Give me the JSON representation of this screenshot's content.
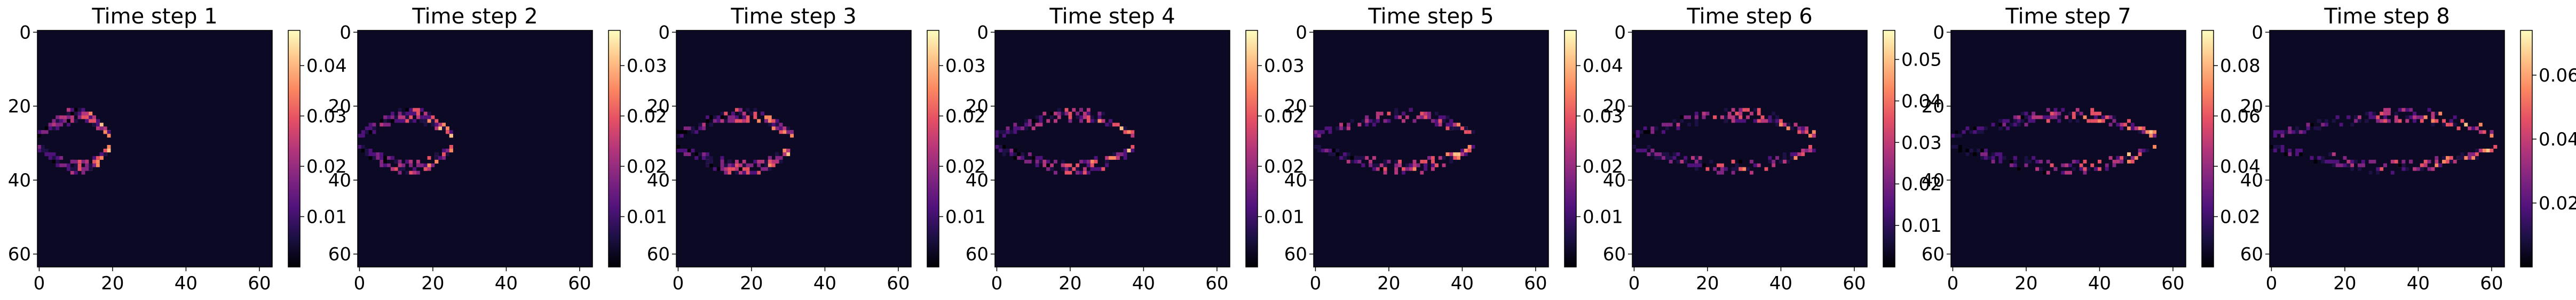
{
  "chart_data": [
    {
      "type": "heatmap",
      "title": "Time step 1",
      "xticks": [
        "0",
        "20",
        "40",
        "60"
      ],
      "yticks": [
        "0",
        "20",
        "40",
        "60"
      ],
      "xlim": [
        0,
        64
      ],
      "ylim": [
        64,
        0
      ],
      "colormap": "magma",
      "colorbar": {
        "ticks": [
          "0.04",
          "0.03",
          "0.02",
          "0.01"
        ],
        "range": [
          0,
          0.044
        ]
      },
      "color_min": "#000004",
      "color_max": "#fcfdbf",
      "background": "#0b0924"
    },
    {
      "type": "heatmap",
      "title": "Time step 2",
      "xticks": [
        "0",
        "20",
        "40",
        "60"
      ],
      "yticks": [
        "0",
        "20",
        "40",
        "60"
      ],
      "xlim": [
        0,
        64
      ],
      "ylim": [
        64,
        0
      ],
      "colormap": "magma",
      "colorbar": {
        "ticks": [
          "0.03",
          "0.02",
          "0.02",
          "0.01"
        ],
        "range": [
          0,
          0.037
        ]
      },
      "color_min": "#000004",
      "color_max": "#fcfdbf",
      "background": "#0b0924"
    },
    {
      "type": "heatmap",
      "title": "Time step 3",
      "xticks": [
        "0",
        "20",
        "40",
        "60"
      ],
      "yticks": [
        "0",
        "20",
        "40",
        "60"
      ],
      "xlim": [
        0,
        64
      ],
      "ylim": [
        64,
        0
      ],
      "colormap": "magma",
      "colorbar": {
        "ticks": [
          "0.03",
          "0.02",
          "0.02",
          "0.01"
        ],
        "range": [
          0,
          0.037
        ]
      },
      "color_min": "#000004",
      "color_max": "#fcfdbf",
      "background": "#0b0924"
    },
    {
      "type": "heatmap",
      "title": "Time step 4",
      "xticks": [
        "0",
        "20",
        "40",
        "60"
      ],
      "yticks": [
        "0",
        "20",
        "40",
        "60"
      ],
      "xlim": [
        0,
        64
      ],
      "ylim": [
        64,
        0
      ],
      "colormap": "magma",
      "colorbar": {
        "ticks": [
          "0.03",
          "0.02",
          "0.02",
          "0.01"
        ],
        "range": [
          0,
          0.037
        ]
      },
      "color_min": "#000004",
      "color_max": "#fcfdbf",
      "background": "#0b0924"
    },
    {
      "type": "heatmap",
      "title": "Time step 5",
      "xticks": [
        "0",
        "20",
        "40",
        "60"
      ],
      "yticks": [
        "0",
        "20",
        "40",
        "60"
      ],
      "xlim": [
        0,
        64
      ],
      "ylim": [
        64,
        0
      ],
      "colormap": "magma",
      "colorbar": {
        "ticks": [
          "0.04",
          "0.03",
          "0.02",
          "0.01"
        ],
        "range": [
          0,
          0.044
        ]
      },
      "color_min": "#000004",
      "color_max": "#fcfdbf",
      "background": "#0b0924"
    },
    {
      "type": "heatmap",
      "title": "Time step 6",
      "xticks": [
        "0",
        "20",
        "40",
        "60"
      ],
      "yticks": [
        "0",
        "20",
        "40",
        "60"
      ],
      "xlim": [
        0,
        64
      ],
      "ylim": [
        64,
        0
      ],
      "colormap": "magma",
      "colorbar": {
        "ticks": [
          "0.05",
          "0.04",
          "0.03",
          "0.02",
          "0.01"
        ],
        "range": [
          0,
          0.058
        ]
      },
      "color_min": "#000004",
      "color_max": "#fcfdbf",
      "background": "#0b0924"
    },
    {
      "type": "heatmap",
      "title": "Time step 7",
      "xticks": [
        "0",
        "20",
        "40",
        "60"
      ],
      "yticks": [
        "0",
        "20",
        "40",
        "60"
      ],
      "xlim": [
        0,
        64
      ],
      "ylim": [
        64,
        0
      ],
      "colormap": "magma",
      "colorbar": {
        "ticks": [
          "0.08",
          "0.06",
          "0.04",
          "0.02"
        ],
        "range": [
          0,
          0.085
        ]
      },
      "color_min": "#000004",
      "color_max": "#fcfdbf",
      "background": "#0b0924"
    },
    {
      "type": "heatmap",
      "title": "Time step 8",
      "xticks": [
        "0",
        "20",
        "40",
        "60"
      ],
      "yticks": [
        "0",
        "20",
        "40",
        "60"
      ],
      "xlim": [
        0,
        64
      ],
      "ylim": [
        64,
        0
      ],
      "colormap": "magma",
      "colorbar": {
        "ticks": [
          "0.06",
          "0.04",
          "0.02"
        ],
        "range": [
          0,
          0.068
        ]
      },
      "color_min": "#000004",
      "color_max": "#fcfdbf",
      "background": "#0b0924"
    }
  ]
}
